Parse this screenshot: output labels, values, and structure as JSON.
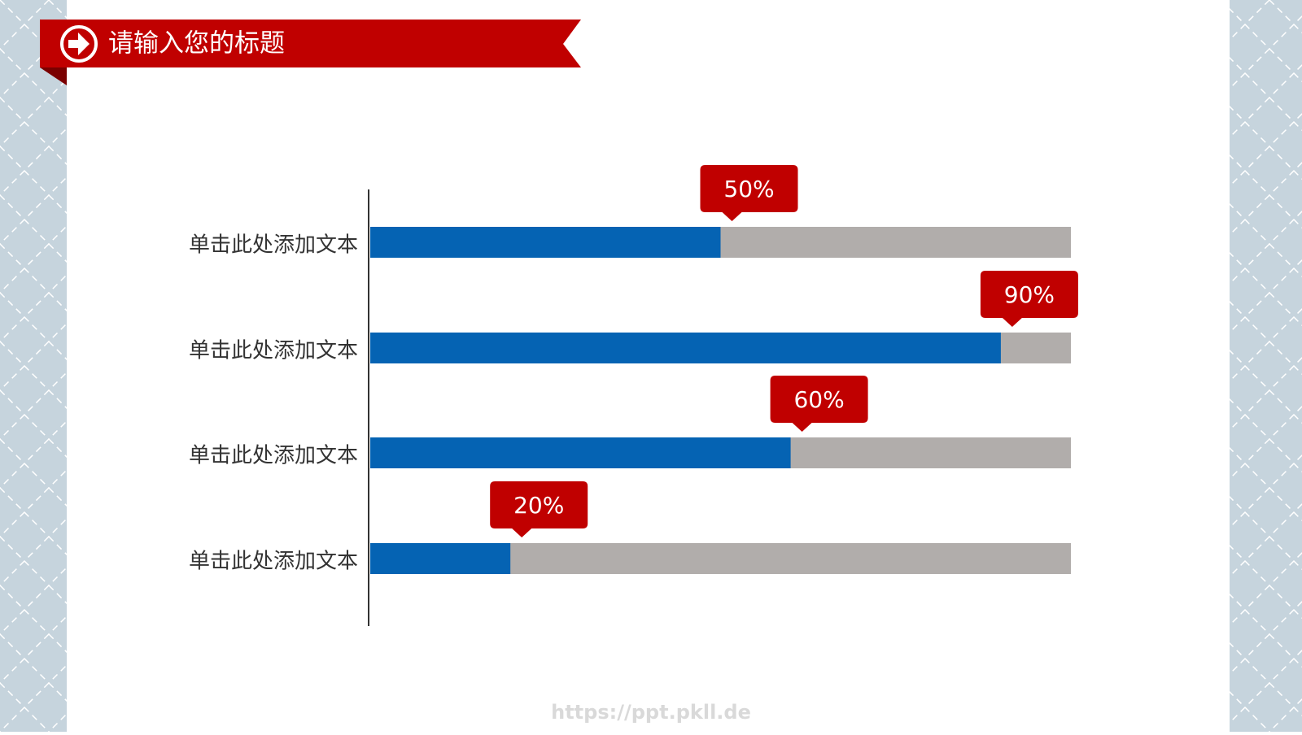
{
  "chart_data": {
    "type": "bar",
    "orientation": "horizontal",
    "title": "请输入您的标题",
    "categories": [
      "单击此处添加文本",
      "单击此处添加文本",
      "单击此处添加文本",
      "单击此处添加文本"
    ],
    "values": [
      50,
      90,
      60,
      20
    ],
    "value_labels": [
      "50%",
      "90%",
      "60%",
      "20%"
    ],
    "color": "#0563b3",
    "track_color": "#b1adab",
    "label_color": "#c00000",
    "xlim": [
      0,
      100
    ]
  },
  "watermark": "https://ppt.pkll.de"
}
